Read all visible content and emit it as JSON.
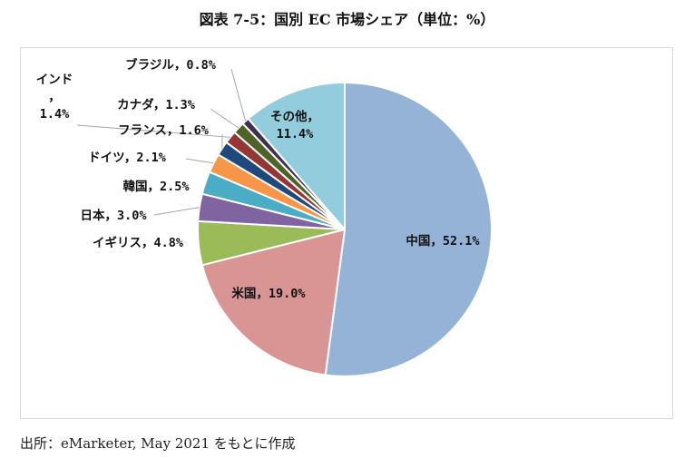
{
  "title": "図表 7-5：国別 EC 市場シェア（単位：%）",
  "source": "出所：eMarketer, May 2021 をもとに作成",
  "chart_data": {
    "type": "pie",
    "title": "図表 7-5：国別 EC 市場シェア（単位：%）",
    "slices": [
      {
        "name": "中国",
        "value": 52.1,
        "label": "中国, 52.1%",
        "color": "#95B3D7"
      },
      {
        "name": "米国",
        "value": 19.0,
        "label": "米国, 19.0%",
        "color": "#D99594"
      },
      {
        "name": "イギリス",
        "value": 4.8,
        "label": "イギリス, 4.8%",
        "color": "#9BBB59"
      },
      {
        "name": "日本",
        "value": 3.0,
        "label": "日本, 3.0%",
        "color": "#8064A2"
      },
      {
        "name": "韓国",
        "value": 2.5,
        "label": "韓国, 2.5%",
        "color": "#4BACC6"
      },
      {
        "name": "ドイツ",
        "value": 2.1,
        "label": "ドイツ, 2.1%",
        "color": "#F79646"
      },
      {
        "name": "フランス",
        "value": 1.6,
        "label": "フランス, 1.6%",
        "color": "#1F497D"
      },
      {
        "name": "インド",
        "value": 1.4,
        "label": "インド, 1.4%",
        "color": "#943634"
      },
      {
        "name": "カナダ",
        "value": 1.3,
        "label": "カナダ, 1.3%",
        "color": "#4F6228"
      },
      {
        "name": "ブラジル",
        "value": 0.8,
        "label": "ブラジル, 0.8%",
        "color": "#403152"
      },
      {
        "name": "その他",
        "value": 11.4,
        "label": "その他, 11.4%",
        "color": "#93CDDD"
      }
    ],
    "start": "12 o'clock",
    "direction": "clockwise"
  }
}
